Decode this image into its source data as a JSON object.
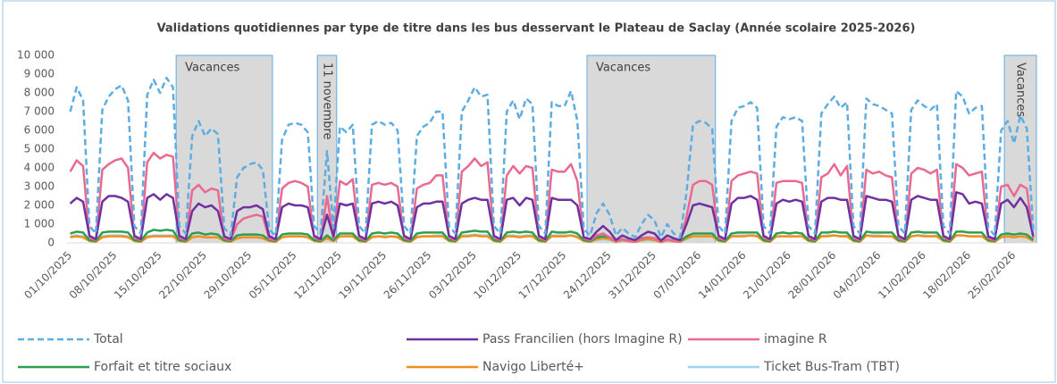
{
  "chart_data": {
    "type": "line",
    "title": "Validations quotidiennes par type de titre dans les bus desservant le Plateau de Saclay (Année scolaire 2025-2026)",
    "categories": [
      "01/10/2025",
      null,
      null,
      null,
      null,
      null,
      null,
      "08/10/2025",
      null,
      null,
      null,
      null,
      null,
      null,
      "15/10/2025",
      null,
      null,
      null,
      null,
      null,
      null,
      "22/10/2025",
      null,
      null,
      null,
      null,
      null,
      null,
      "29/10/2025",
      null,
      null,
      null,
      null,
      null,
      null,
      "05/11/2025",
      null,
      null,
      null,
      null,
      null,
      null,
      "12/11/2025",
      null,
      null,
      null,
      null,
      null,
      null,
      "19/11/2025",
      null,
      null,
      null,
      null,
      null,
      null,
      "26/11/2025",
      null,
      null,
      null,
      null,
      null,
      null,
      "03/12/2025",
      null,
      null,
      null,
      null,
      null,
      null,
      "10/12/2025",
      null,
      null,
      null,
      null,
      null,
      null,
      "17/12/2025",
      null,
      null,
      null,
      null,
      null,
      null,
      "24/12/2025",
      null,
      null,
      null,
      null,
      null,
      null,
      "31/12/2025",
      null,
      null,
      null,
      null,
      null,
      null,
      "07/01/2026",
      null,
      null,
      null,
      null,
      null,
      null,
      "14/01/2026",
      null,
      null,
      null,
      null,
      null,
      null,
      "21/01/2026",
      null,
      null,
      null,
      null,
      null,
      null,
      "28/01/2026",
      null,
      null,
      null,
      null,
      null,
      null,
      "04/02/2026",
      null,
      null,
      null,
      null,
      null,
      null,
      "11/02/2026",
      null,
      null,
      null,
      null,
      null,
      null,
      "18/02/2026",
      null,
      null,
      null,
      null,
      null,
      null,
      "25/02/2026",
      null,
      null,
      null
    ],
    "series": [
      {
        "name": "Total",
        "color": "#5dade2",
        "dashed": true,
        "values": [
          7000,
          8300,
          7600,
          900,
          500,
          7100,
          7800,
          8200,
          8400,
          7600,
          900,
          500,
          7900,
          8700,
          8000,
          8800,
          8300,
          900,
          500,
          5700,
          6500,
          5700,
          6100,
          5800,
          800,
          400,
          3500,
          4000,
          4200,
          4300,
          3900,
          700,
          400,
          5500,
          6300,
          6400,
          6300,
          5900,
          900,
          500,
          4900,
          800,
          6200,
          5900,
          6300,
          900,
          500,
          6300,
          6500,
          6300,
          6400,
          6000,
          900,
          500,
          5700,
          6200,
          6400,
          7000,
          7000,
          900,
          500,
          7000,
          7600,
          8300,
          7800,
          7900,
          900,
          500,
          7000,
          7600,
          6600,
          7700,
          7400,
          900,
          500,
          7500,
          7300,
          7300,
          8100,
          6500,
          700,
          400,
          1600,
          2100,
          1500,
          400,
          800,
          500,
          300,
          1000,
          1500,
          1200,
          300,
          1000,
          500,
          300,
          2700,
          6300,
          6500,
          6400,
          6100,
          900,
          500,
          6500,
          7200,
          7300,
          7500,
          7200,
          900,
          500,
          6200,
          6700,
          6600,
          6700,
          6500,
          900,
          500,
          6900,
          7400,
          7800,
          7200,
          7500,
          900,
          500,
          7700,
          7400,
          7300,
          7100,
          6900,
          900,
          500,
          7100,
          7600,
          7300,
          7100,
          7400,
          900,
          500,
          8100,
          7800,
          6900,
          7200,
          7300,
          800,
          400,
          6000,
          6500,
          5300,
          6800,
          6100,
          700
        ]
      },
      {
        "name": "Pass Francilien (hors Imagine R)",
        "color": "#7030a0",
        "values": [
          2100,
          2400,
          2200,
          380,
          200,
          2200,
          2500,
          2500,
          2400,
          2200,
          380,
          200,
          2400,
          2600,
          2300,
          2600,
          2400,
          380,
          200,
          1700,
          2100,
          1900,
          2000,
          1700,
          350,
          200,
          1700,
          1900,
          1900,
          2000,
          1800,
          350,
          200,
          1900,
          2100,
          2000,
          2000,
          1900,
          380,
          200,
          1500,
          350,
          2100,
          2000,
          2100,
          380,
          200,
          2100,
          2200,
          2100,
          2200,
          2000,
          380,
          200,
          1900,
          2100,
          2100,
          2200,
          2200,
          380,
          200,
          2100,
          2300,
          2400,
          2300,
          2300,
          380,
          200,
          2300,
          2400,
          2000,
          2400,
          2300,
          380,
          200,
          2400,
          2300,
          2300,
          2300,
          2000,
          300,
          200,
          600,
          900,
          600,
          150,
          400,
          250,
          150,
          400,
          600,
          500,
          120,
          400,
          250,
          150,
          1000,
          2000,
          2100,
          2000,
          1900,
          380,
          200,
          2100,
          2400,
          2400,
          2500,
          2300,
          380,
          200,
          2100,
          2300,
          2200,
          2300,
          2200,
          380,
          200,
          2200,
          2400,
          2400,
          2300,
          2300,
          380,
          200,
          2500,
          2400,
          2300,
          2300,
          2200,
          380,
          200,
          2300,
          2500,
          2400,
          2300,
          2300,
          380,
          200,
          2700,
          2600,
          2100,
          2200,
          2100,
          350,
          200,
          2100,
          2300,
          1900,
          2400,
          1900,
          350
        ]
      },
      {
        "name": "imagine R",
        "color": "#ea6a8f",
        "values": [
          3800,
          4400,
          4100,
          300,
          150,
          3900,
          4200,
          4400,
          4500,
          4000,
          300,
          150,
          4300,
          4800,
          4500,
          4700,
          4600,
          300,
          150,
          2800,
          3100,
          2700,
          2900,
          2800,
          250,
          150,
          1000,
          1300,
          1400,
          1500,
          1400,
          200,
          150,
          2900,
          3200,
          3300,
          3200,
          3000,
          300,
          150,
          2500,
          250,
          3300,
          3100,
          3400,
          300,
          150,
          3100,
          3200,
          3100,
          3200,
          3000,
          300,
          150,
          2900,
          3100,
          3200,
          3600,
          3600,
          300,
          150,
          3800,
          4100,
          4500,
          4100,
          4300,
          300,
          150,
          3600,
          4100,
          3700,
          4100,
          4000,
          300,
          150,
          3900,
          3800,
          3800,
          4200,
          3300,
          250,
          150,
          400,
          500,
          300,
          80,
          200,
          100,
          80,
          200,
          300,
          250,
          60,
          200,
          100,
          80,
          1400,
          3100,
          3300,
          3300,
          3100,
          300,
          150,
          3300,
          3600,
          3700,
          3800,
          3700,
          300,
          150,
          3200,
          3300,
          3300,
          3300,
          3200,
          300,
          150,
          3500,
          3700,
          4200,
          3600,
          4100,
          300,
          150,
          3900,
          3700,
          3800,
          3600,
          3500,
          300,
          150,
          3700,
          4000,
          3900,
          3700,
          3900,
          300,
          150,
          4200,
          4000,
          3600,
          3700,
          3800,
          250,
          150,
          3000,
          3100,
          2500,
          3100,
          2900,
          250
        ]
      },
      {
        "name": "Forfait et titre sociaux",
        "color": "#2e9e4f",
        "values": [
          500,
          600,
          550,
          150,
          100,
          550,
          600,
          600,
          600,
          550,
          150,
          100,
          550,
          700,
          650,
          700,
          650,
          150,
          100,
          500,
          550,
          450,
          500,
          450,
          150,
          100,
          400,
          450,
          450,
          450,
          400,
          150,
          100,
          450,
          500,
          500,
          500,
          450,
          150,
          100,
          400,
          150,
          500,
          500,
          500,
          150,
          100,
          500,
          550,
          500,
          550,
          500,
          150,
          100,
          500,
          550,
          550,
          550,
          550,
          150,
          100,
          550,
          600,
          650,
          600,
          600,
          150,
          100,
          550,
          600,
          550,
          600,
          550,
          150,
          100,
          600,
          550,
          550,
          600,
          500,
          150,
          100,
          300,
          350,
          300,
          80,
          200,
          120,
          80,
          250,
          300,
          250,
          70,
          200,
          120,
          80,
          350,
          500,
          500,
          500,
          500,
          150,
          100,
          500,
          550,
          550,
          550,
          550,
          150,
          100,
          500,
          550,
          500,
          550,
          500,
          150,
          100,
          550,
          550,
          600,
          550,
          550,
          150,
          100,
          600,
          550,
          550,
          550,
          550,
          150,
          100,
          550,
          600,
          550,
          550,
          550,
          150,
          100,
          600,
          600,
          550,
          550,
          550,
          150,
          100,
          450,
          500,
          450,
          500,
          450,
          150
        ]
      },
      {
        "name": "Navigo Liberté+",
        "color": "#f28e1c",
        "values": [
          300,
          350,
          300,
          100,
          60,
          300,
          350,
          350,
          350,
          300,
          100,
          60,
          300,
          350,
          350,
          350,
          350,
          100,
          60,
          300,
          350,
          300,
          300,
          300,
          100,
          60,
          250,
          300,
          300,
          300,
          250,
          100,
          60,
          300,
          350,
          350,
          350,
          300,
          100,
          60,
          250,
          100,
          350,
          350,
          350,
          100,
          60,
          300,
          350,
          300,
          350,
          300,
          100,
          60,
          300,
          350,
          350,
          350,
          350,
          100,
          60,
          350,
          350,
          400,
          350,
          350,
          100,
          60,
          350,
          350,
          300,
          350,
          350,
          100,
          60,
          350,
          350,
          350,
          400,
          300,
          100,
          60,
          200,
          250,
          200,
          50,
          150,
          80,
          50,
          150,
          200,
          150,
          40,
          150,
          80,
          50,
          250,
          350,
          350,
          350,
          350,
          100,
          60,
          350,
          350,
          350,
          400,
          350,
          100,
          60,
          350,
          350,
          350,
          350,
          350,
          100,
          60,
          350,
          350,
          400,
          350,
          350,
          100,
          60,
          400,
          350,
          350,
          350,
          350,
          100,
          60,
          350,
          400,
          350,
          350,
          350,
          100,
          60,
          400,
          400,
          350,
          350,
          350,
          100,
          60,
          300,
          350,
          300,
          350,
          300,
          100
        ]
      },
      {
        "name": "Ticket Bus-Tram (TBT)",
        "color": "#9dd3f0",
        "values": [
          350,
          400,
          350,
          120,
          80,
          350,
          400,
          400,
          400,
          350,
          120,
          80,
          350,
          400,
          400,
          400,
          400,
          120,
          80,
          300,
          350,
          300,
          300,
          300,
          120,
          80,
          250,
          300,
          300,
          300,
          250,
          100,
          80,
          300,
          350,
          350,
          350,
          300,
          120,
          80,
          250,
          100,
          350,
          350,
          350,
          120,
          80,
          350,
          350,
          350,
          350,
          350,
          120,
          80,
          350,
          350,
          350,
          400,
          400,
          120,
          80,
          400,
          400,
          450,
          400,
          400,
          120,
          80,
          400,
          400,
          350,
          400,
          400,
          120,
          80,
          400,
          400,
          400,
          400,
          350,
          120,
          80,
          150,
          200,
          150,
          40,
          100,
          80,
          50,
          120,
          150,
          120,
          40,
          100,
          80,
          50,
          200,
          350,
          350,
          350,
          350,
          120,
          80,
          350,
          400,
          400,
          400,
          400,
          120,
          80,
          350,
          350,
          350,
          350,
          350,
          120,
          80,
          350,
          400,
          400,
          350,
          400,
          120,
          80,
          400,
          400,
          400,
          350,
          350,
          120,
          80,
          350,
          400,
          400,
          350,
          400,
          120,
          80,
          400,
          400,
          350,
          350,
          350,
          120,
          80,
          300,
          350,
          300,
          350,
          300,
          100
        ]
      }
    ],
    "ylim": [
      0,
      10000
    ],
    "yticks": [
      0,
      {
        "value": 1000,
        "label": "1 000"
      },
      {
        "value": 2000,
        "label": "2 000"
      },
      {
        "value": 3000,
        "label": "3 000"
      },
      {
        "value": 4000,
        "label": "4 000"
      },
      {
        "value": 5000,
        "label": "5 000"
      },
      {
        "value": 6000,
        "label": "6 000"
      },
      {
        "value": 7000,
        "label": "7 000"
      },
      {
        "value": 8000,
        "label": "8 000"
      },
      {
        "value": 9000,
        "label": "9 000"
      },
      {
        "value": 10000,
        "label": "10 000"
      }
    ],
    "grid": false,
    "legend": "bottom",
    "annotations": [
      {
        "text": "Vacances",
        "start": 17,
        "end": 31,
        "vertical": false
      },
      {
        "text": "11 novembre",
        "start": 39,
        "end": 41,
        "vertical": true
      },
      {
        "text": "Vacances",
        "start": 81,
        "end": 100,
        "vertical": false
      },
      {
        "text": "Vacances",
        "start": 146,
        "end": 150,
        "vertical": true
      }
    ]
  }
}
